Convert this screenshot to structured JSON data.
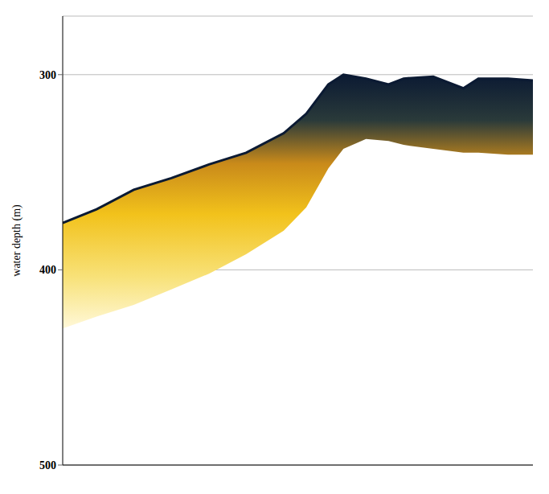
{
  "chart_data": {
    "type": "area",
    "y_label": "water depth (m)",
    "x": [
      0,
      7.2,
      15.1,
      23.1,
      31.1,
      39.0,
      47.0,
      51.8,
      56.5,
      59.7,
      64.5,
      69.3,
      72.5,
      78.8,
      85.2,
      88.4,
      94.7,
      100
    ],
    "values": [
      376,
      369,
      359,
      353,
      346,
      340,
      330,
      320,
      305,
      300,
      302,
      305,
      302,
      301,
      307,
      302,
      302,
      303
    ],
    "base_values": [
      430,
      424,
      418,
      410,
      402,
      392,
      380,
      368,
      348,
      338,
      333,
      334,
      336,
      338,
      340,
      340,
      341,
      341
    ],
    "color": "#0b1a33",
    "xlim": [
      0,
      100
    ],
    "ylim": [
      270,
      500
    ],
    "yticks": [
      300,
      400,
      500
    ],
    "grid": true,
    "tick_labels": "y"
  }
}
